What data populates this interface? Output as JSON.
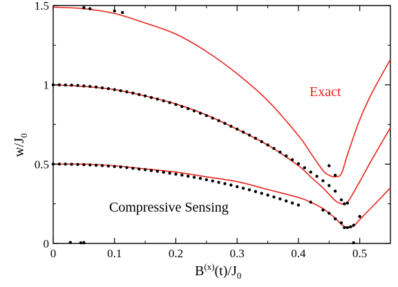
{
  "chart_data": {
    "type": "line",
    "xlabel": "B",
    "xlabel_sup": "(x)",
    "xlabel_rest": "(t)/J",
    "xlabel_sub": "0",
    "ylabel": "w/J",
    "ylabel_sub": "0",
    "xlim": [
      0,
      0.55
    ],
    "ylim": [
      0,
      1.5
    ],
    "xticks": [
      0,
      0.1,
      0.2,
      0.3,
      0.4,
      0.5
    ],
    "xtick_labels": [
      "0",
      "0.1",
      "0.2",
      "0.3",
      "0.4",
      "0.5"
    ],
    "yticks": [
      0,
      0.5,
      1,
      1.5
    ],
    "ytick_labels": [
      "0",
      "0.5",
      "1",
      "1.5"
    ],
    "grid": false,
    "annotations": [
      {
        "text": "Exact",
        "color": "#e8221a",
        "x": 0.435,
        "y": 0.74
      },
      {
        "text": "Compressive Sensing",
        "color": "#000000",
        "x": 0.09,
        "y": 0.17
      }
    ],
    "series": [
      {
        "color": "#e8221a",
        "style": "line",
        "x": [
          0,
          0.05,
          0.1,
          0.15,
          0.2,
          0.25,
          0.3,
          0.35,
          0.4,
          0.42,
          0.44,
          0.45,
          0.46,
          0.47,
          0.48,
          0.5,
          0.52,
          0.55
        ],
        "y": [
          1.49,
          1.48,
          1.45,
          1.39,
          1.32,
          1.21,
          1.07,
          0.9,
          0.68,
          0.57,
          0.46,
          0.43,
          0.42,
          0.44,
          0.56,
          0.78,
          0.95,
          1.16
        ]
      },
      {
        "color": "#e8221a",
        "style": "line",
        "x": [
          0,
          0.05,
          0.1,
          0.15,
          0.2,
          0.25,
          0.3,
          0.35,
          0.4,
          0.42,
          0.44,
          0.45,
          0.46,
          0.47,
          0.48,
          0.5,
          0.52,
          0.55
        ],
        "y": [
          1.0,
          0.99,
          0.97,
          0.93,
          0.88,
          0.81,
          0.72,
          0.62,
          0.49,
          0.42,
          0.35,
          0.31,
          0.27,
          0.25,
          0.26,
          0.39,
          0.53,
          0.73
        ]
      },
      {
        "color": "#e8221a",
        "style": "line",
        "x": [
          0,
          0.05,
          0.1,
          0.15,
          0.2,
          0.25,
          0.3,
          0.35,
          0.4,
          0.42,
          0.44,
          0.45,
          0.46,
          0.47,
          0.48,
          0.49,
          0.5,
          0.52,
          0.55
        ],
        "y": [
          0.5,
          0.5,
          0.49,
          0.47,
          0.45,
          0.42,
          0.39,
          0.34,
          0.29,
          0.26,
          0.22,
          0.19,
          0.16,
          0.12,
          0.1,
          0.11,
          0.15,
          0.23,
          0.35
        ]
      },
      {
        "color": "#000000",
        "style": "points",
        "x": [
          0.05,
          0.06,
          0.1,
          0.113,
          0.45,
          0.46
        ],
        "y": [
          1.486,
          1.48,
          1.466,
          1.456,
          0.49,
          0.43
        ]
      },
      {
        "color": "#000000",
        "style": "points",
        "x": [
          0,
          0.01,
          0.02,
          0.03,
          0.04,
          0.05,
          0.06,
          0.07,
          0.08,
          0.09,
          0.1,
          0.11,
          0.12,
          0.13,
          0.14,
          0.15,
          0.16,
          0.17,
          0.18,
          0.19,
          0.2,
          0.21,
          0.22,
          0.23,
          0.24,
          0.25,
          0.26,
          0.27,
          0.28,
          0.29,
          0.3,
          0.31,
          0.32,
          0.33,
          0.34,
          0.35,
          0.36,
          0.37,
          0.38,
          0.39,
          0.4,
          0.41,
          0.42,
          0.43,
          0.44,
          0.45,
          0.46,
          0.47,
          0.475,
          0.48
        ],
        "y": [
          1.0,
          1.0,
          0.999,
          0.998,
          0.996,
          0.993,
          0.99,
          0.986,
          0.981,
          0.976,
          0.97,
          0.963,
          0.956,
          0.948,
          0.939,
          0.93,
          0.92,
          0.91,
          0.899,
          0.888,
          0.876,
          0.863,
          0.85,
          0.836,
          0.821,
          0.806,
          0.79,
          0.774,
          0.757,
          0.739,
          0.721,
          0.702,
          0.683,
          0.663,
          0.642,
          0.621,
          0.599,
          0.576,
          0.552,
          0.528,
          0.503,
          0.477,
          0.45,
          0.423,
          0.395,
          0.365,
          0.33,
          0.275,
          0.25,
          0.255
        ]
      },
      {
        "color": "#000000",
        "style": "points",
        "x": [
          0,
          0.01,
          0.02,
          0.03,
          0.04,
          0.05,
          0.06,
          0.07,
          0.08,
          0.09,
          0.1,
          0.11,
          0.12,
          0.13,
          0.14,
          0.15,
          0.16,
          0.17,
          0.18,
          0.19,
          0.2,
          0.21,
          0.22,
          0.23,
          0.24,
          0.25,
          0.26,
          0.27,
          0.28,
          0.29,
          0.3,
          0.31,
          0.32,
          0.33,
          0.34,
          0.35,
          0.36,
          0.37,
          0.38,
          0.39,
          0.4,
          0.42,
          0.44,
          0.45,
          0.46,
          0.47,
          0.475,
          0.48,
          0.485,
          0.49,
          0.5
        ],
        "y": [
          0.5,
          0.5,
          0.5,
          0.499,
          0.498,
          0.497,
          0.495,
          0.493,
          0.491,
          0.488,
          0.485,
          0.482,
          0.478,
          0.474,
          0.469,
          0.465,
          0.46,
          0.455,
          0.449,
          0.443,
          0.437,
          0.431,
          0.424,
          0.417,
          0.41,
          0.402,
          0.394,
          0.385,
          0.377,
          0.368,
          0.358,
          0.348,
          0.338,
          0.327,
          0.316,
          0.305,
          0.293,
          0.281,
          0.268,
          0.255,
          0.242,
          0.26,
          0.21,
          0.19,
          0.155,
          0.13,
          0.1,
          0.1,
          0.105,
          0.115,
          0.17
        ]
      },
      {
        "color": "#000000",
        "style": "points",
        "x": [
          0.028,
          0.045,
          0.05,
          0.49
        ],
        "y": [
          0.006,
          0.004,
          0.004,
          0.004
        ]
      }
    ]
  }
}
